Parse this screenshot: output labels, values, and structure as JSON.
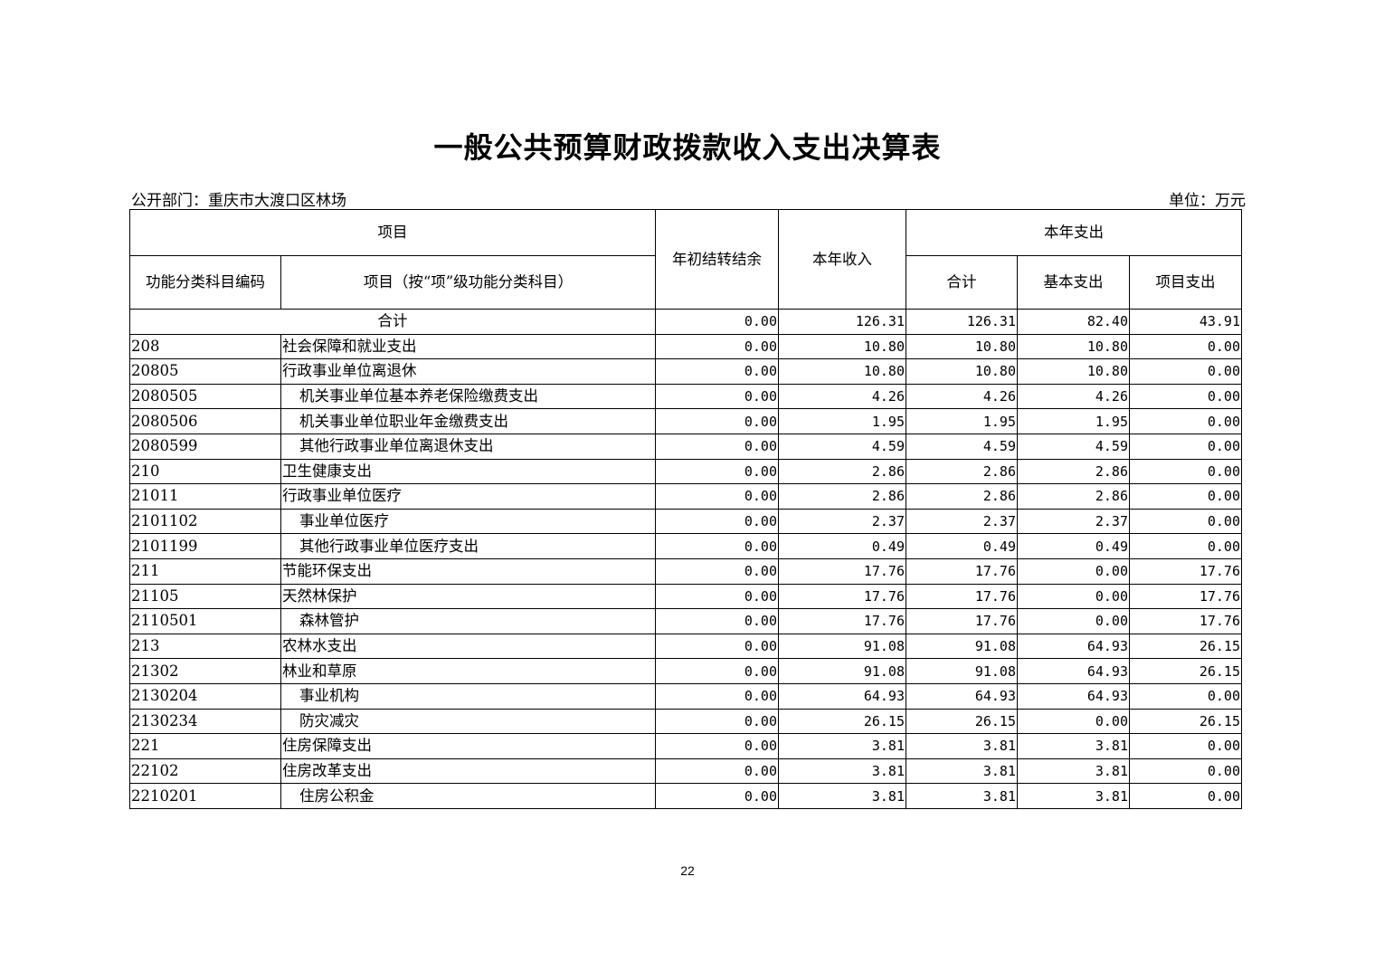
{
  "title": "一般公共预算财政拨款收入支出决算表",
  "department": "公开部门：重庆市大渡口区林场",
  "unit": "单位：万元",
  "headers": {
    "item": "项目",
    "carryover": "年初结转结余",
    "income": "本年收入",
    "expense": "本年支出",
    "code": "功能分类科目编码",
    "item_name": "项目（按“项”级功能分类科目）",
    "total": "合计",
    "basic": "基本支出",
    "project": "项目支出"
  },
  "total_row": {
    "label": "合计",
    "values": [
      "0.00",
      "126.31",
      "126.31",
      "82.40",
      "43.91"
    ]
  },
  "rows": [
    {
      "code": "208",
      "name": "社会保障和就业支出",
      "level": 1,
      "values": [
        "0.00",
        "10.80",
        "10.80",
        "10.80",
        "0.00"
      ]
    },
    {
      "code": "20805",
      "name": "行政事业单位离退休",
      "level": 2,
      "values": [
        "0.00",
        "10.80",
        "10.80",
        "10.80",
        "0.00"
      ]
    },
    {
      "code": "2080505",
      "name": "机关事业单位基本养老保险缴费支出",
      "level": 3,
      "values": [
        "0.00",
        "4.26",
        "4.26",
        "4.26",
        "0.00"
      ]
    },
    {
      "code": "2080506",
      "name": "机关事业单位职业年金缴费支出",
      "level": 3,
      "values": [
        "0.00",
        "1.95",
        "1.95",
        "1.95",
        "0.00"
      ]
    },
    {
      "code": "2080599",
      "name": "其他行政事业单位离退休支出",
      "level": 3,
      "values": [
        "0.00",
        "4.59",
        "4.59",
        "4.59",
        "0.00"
      ]
    },
    {
      "code": "210",
      "name": "卫生健康支出",
      "level": 1,
      "values": [
        "0.00",
        "2.86",
        "2.86",
        "2.86",
        "0.00"
      ]
    },
    {
      "code": "21011",
      "name": "行政事业单位医疗",
      "level": 2,
      "values": [
        "0.00",
        "2.86",
        "2.86",
        "2.86",
        "0.00"
      ]
    },
    {
      "code": "2101102",
      "name": "事业单位医疗",
      "level": 3,
      "values": [
        "0.00",
        "2.37",
        "2.37",
        "2.37",
        "0.00"
      ]
    },
    {
      "code": "2101199",
      "name": "其他行政事业单位医疗支出",
      "level": 3,
      "values": [
        "0.00",
        "0.49",
        "0.49",
        "0.49",
        "0.00"
      ]
    },
    {
      "code": "211",
      "name": "节能环保支出",
      "level": 1,
      "values": [
        "0.00",
        "17.76",
        "17.76",
        "0.00",
        "17.76"
      ]
    },
    {
      "code": "21105",
      "name": "天然林保护",
      "level": 2,
      "values": [
        "0.00",
        "17.76",
        "17.76",
        "0.00",
        "17.76"
      ]
    },
    {
      "code": "2110501",
      "name": "森林管护",
      "level": 3,
      "values": [
        "0.00",
        "17.76",
        "17.76",
        "0.00",
        "17.76"
      ]
    },
    {
      "code": "213",
      "name": "农林水支出",
      "level": 1,
      "values": [
        "0.00",
        "91.08",
        "91.08",
        "64.93",
        "26.15"
      ]
    },
    {
      "code": "21302",
      "name": "林业和草原",
      "level": 2,
      "values": [
        "0.00",
        "91.08",
        "91.08",
        "64.93",
        "26.15"
      ]
    },
    {
      "code": "2130204",
      "name": "事业机构",
      "level": 3,
      "values": [
        "0.00",
        "64.93",
        "64.93",
        "64.93",
        "0.00"
      ]
    },
    {
      "code": "2130234",
      "name": "防灾减灾",
      "level": 3,
      "values": [
        "0.00",
        "26.15",
        "26.15",
        "0.00",
        "26.15"
      ]
    },
    {
      "code": "221",
      "name": "住房保障支出",
      "level": 1,
      "values": [
        "0.00",
        "3.81",
        "3.81",
        "3.81",
        "0.00"
      ]
    },
    {
      "code": "22102",
      "name": "住房改革支出",
      "level": 2,
      "values": [
        "0.00",
        "3.81",
        "3.81",
        "3.81",
        "0.00"
      ]
    },
    {
      "code": "2210201",
      "name": "住房公积金",
      "level": 3,
      "values": [
        "0.00",
        "3.81",
        "3.81",
        "3.81",
        "0.00"
      ]
    }
  ],
  "page_number": "22"
}
